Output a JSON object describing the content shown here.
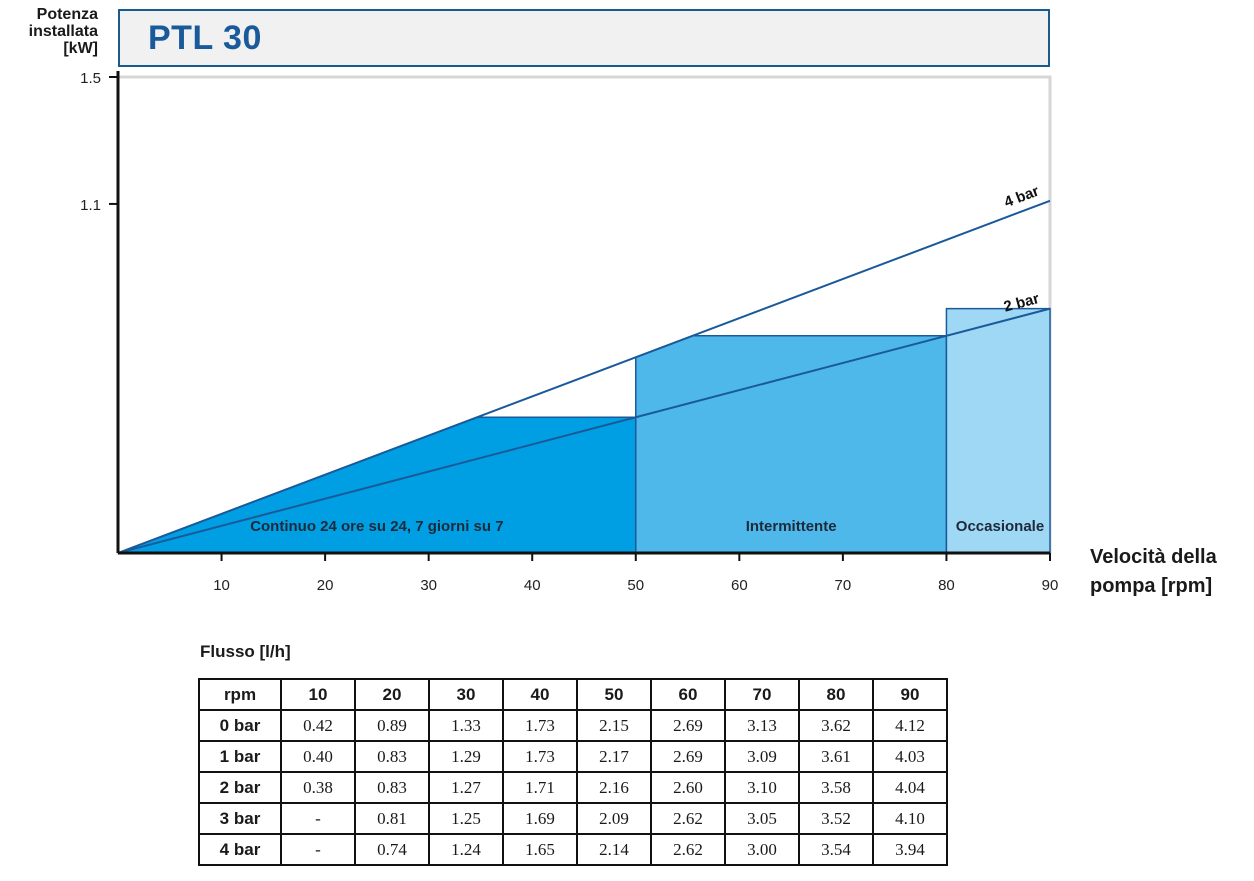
{
  "header": {
    "title": "PTL 30"
  },
  "chart_data": {
    "type": "area",
    "ylabel_lines": [
      "Potenza",
      "installata",
      "[kW]"
    ],
    "xlabel_lines": [
      "Velocità della",
      "pompa [rpm]"
    ],
    "xlim": [
      0,
      90
    ],
    "ylim": [
      0,
      1.5
    ],
    "x_ticks": [
      10,
      20,
      30,
      40,
      50,
      60,
      70,
      80,
      90
    ],
    "y_ticks": [
      {
        "value": 1.5,
        "label": "1.5"
      },
      {
        "value": 1.1,
        "label": "1.1"
      }
    ],
    "series": [
      {
        "name": "4 bar",
        "x": [
          0,
          90
        ],
        "y": [
          0,
          1.11
        ]
      },
      {
        "name": "2 bar",
        "x": [
          0,
          90
        ],
        "y": [
          0,
          0.77
        ]
      }
    ],
    "zones": [
      {
        "label": "Continuo 24 ore su 24, 7 giorni su 7",
        "x_range": [
          0,
          50
        ],
        "color": "#009fe3"
      },
      {
        "label": "Intermittente",
        "x_range": [
          50,
          80
        ],
        "color": "#4fb8ea"
      },
      {
        "label": "Occasionale",
        "x_range": [
          80,
          90
        ],
        "color": "#9ed8f4"
      }
    ],
    "grid": false
  },
  "table": {
    "title": "Flusso [l/h]",
    "header_label": "rpm",
    "columns": [
      "10",
      "20",
      "30",
      "40",
      "50",
      "60",
      "70",
      "80",
      "90"
    ],
    "rows": [
      {
        "label": "0 bar",
        "values": [
          "0.42",
          "0.89",
          "1.33",
          "1.73",
          "2.15",
          "2.69",
          "3.13",
          "3.62",
          "4.12"
        ]
      },
      {
        "label": "1 bar",
        "values": [
          "0.40",
          "0.83",
          "1.29",
          "1.73",
          "2.17",
          "2.69",
          "3.09",
          "3.61",
          "4.03"
        ]
      },
      {
        "label": "2 bar",
        "values": [
          "0.38",
          "0.83",
          "1.27",
          "1.71",
          "2.16",
          "2.60",
          "3.10",
          "3.58",
          "4.04"
        ]
      },
      {
        "label": "3 bar",
        "values": [
          "-",
          "0.81",
          "1.25",
          "1.69",
          "2.09",
          "2.62",
          "3.05",
          "3.52",
          "4.10"
        ]
      },
      {
        "label": "4 bar",
        "values": [
          "-",
          "0.74",
          "1.24",
          "1.65",
          "2.14",
          "2.62",
          "3.00",
          "3.54",
          "3.94"
        ]
      }
    ]
  }
}
